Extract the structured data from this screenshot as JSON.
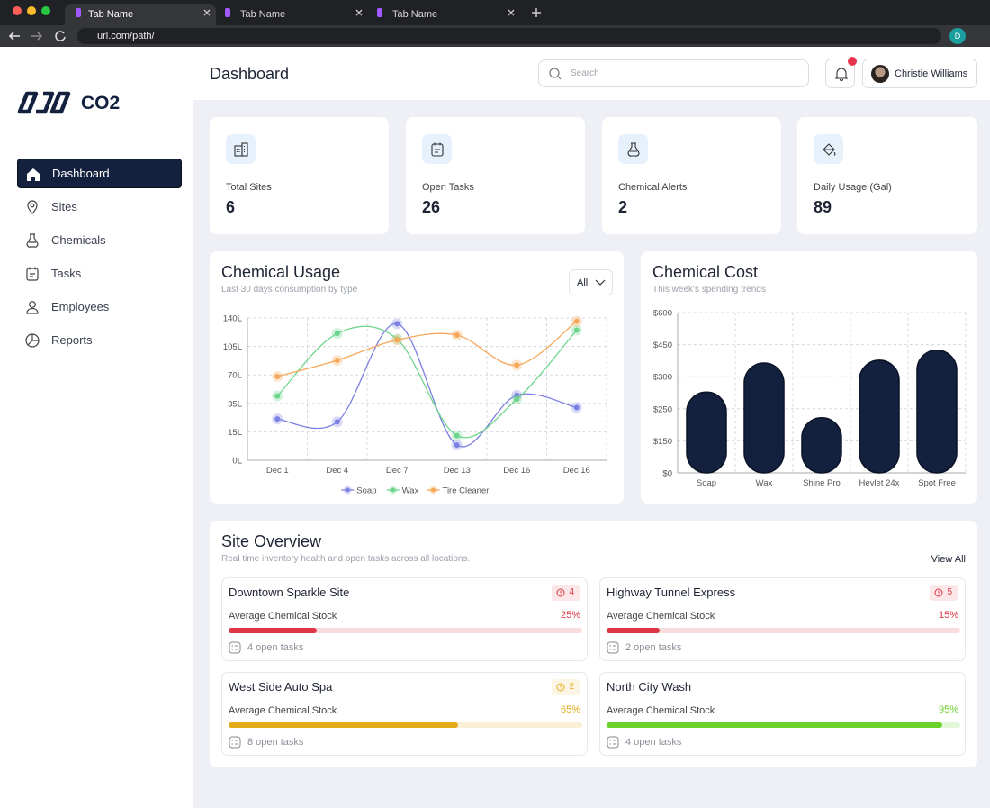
{
  "browser": {
    "tabs": [
      "Tab Name",
      "Tab Name",
      "Tab Name"
    ],
    "url": "url.com/path/",
    "profile": "D"
  },
  "sidebar": {
    "logo": "CO2",
    "nav": [
      "Dashboard",
      "Sites",
      "Chemicals",
      "Tasks",
      "Employees",
      "Reports"
    ]
  },
  "header": {
    "title": "Dashboard",
    "search_placeholder": "Search",
    "user": "Christie Williams"
  },
  "stats": [
    {
      "label": "Total Sites",
      "value": 6
    },
    {
      "label": "Open Tasks",
      "value": 26
    },
    {
      "label": "Chemical Alerts",
      "value": 2
    },
    {
      "label": "Daily Usage (Gal)",
      "value": 89
    }
  ],
  "usage_chart": {
    "type": "line",
    "title": "Chemical Usage",
    "subtitle": "Last 30 days consumption by type",
    "filter": "All",
    "categories": [
      "Dec 1",
      "Dec 4",
      "Dec 7",
      "Dec 13",
      "Dec 16",
      "Dec 16"
    ],
    "series": [
      {
        "name": "Soap",
        "color": "#7c80e2",
        "values": [
          24,
          22,
          133,
          8,
          45,
          32
        ]
      },
      {
        "name": "Wax",
        "color": "#6dd58b",
        "values": [
          44,
          121,
          114,
          13,
          40,
          125
        ]
      },
      {
        "name": "Tire Cleaner",
        "color": "#f6a85a",
        "values": [
          68,
          88,
          113,
          119,
          82,
          136
        ]
      }
    ],
    "ylim": [
      0,
      140
    ],
    "yticks": [
      {
        "value": 0,
        "label": "0L"
      },
      {
        "value": 15,
        "label": "15L"
      },
      {
        "value": 35,
        "label": "35L"
      },
      {
        "value": 70,
        "label": "70L"
      },
      {
        "value": 105,
        "label": "105L"
      },
      {
        "value": 140,
        "label": "140L"
      }
    ],
    "grid": true
  },
  "cost_chart": {
    "type": "bar",
    "title": "Chemical Cost",
    "subtitle": "This week's spending trends",
    "categories": [
      "Soap",
      "Wax",
      "Shine Pro",
      "Hevlet 24x",
      "Spot Free"
    ],
    "values": [
      276,
      364,
      222,
      377,
      424
    ],
    "color": "#13213f",
    "ylim": [
      0,
      600
    ],
    "yticks": [
      {
        "value": 0,
        "label": "$0"
      },
      {
        "value": 150,
        "label": "$150"
      },
      {
        "value": 250,
        "label": "$250"
      },
      {
        "value": 300,
        "label": "$300"
      },
      {
        "value": 450,
        "label": "$450"
      },
      {
        "value": 600,
        "label": "$600"
      }
    ],
    "grid": true
  },
  "site_overview": {
    "title": "Site Overview",
    "subtitle": "Real time inventory health and open tasks across all locations.",
    "action": "View All",
    "stock_text": "Average Chemical Stock",
    "sites": [
      {
        "name": "Downtown Sparkle Site",
        "alerts": 4,
        "stock": 25,
        "stock_label": "25%",
        "tasks": "4 open tasks",
        "color": "#dc3545"
      },
      {
        "name": "Highway Tunnel Express",
        "alerts": 5,
        "stock": 15,
        "stock_label": "15%",
        "tasks": "2 open tasks",
        "color": "#dc3545"
      },
      {
        "name": "West Side Auto Spa",
        "alerts": 2,
        "stock": 65,
        "stock_label": "65%",
        "tasks": "8 open tasks",
        "color": "#e3aa1a"
      },
      {
        "name": "North City Wash",
        "stock": 95,
        "stock_label": "95%",
        "tasks": "4 open tasks",
        "color": "#6bd12b"
      }
    ]
  }
}
